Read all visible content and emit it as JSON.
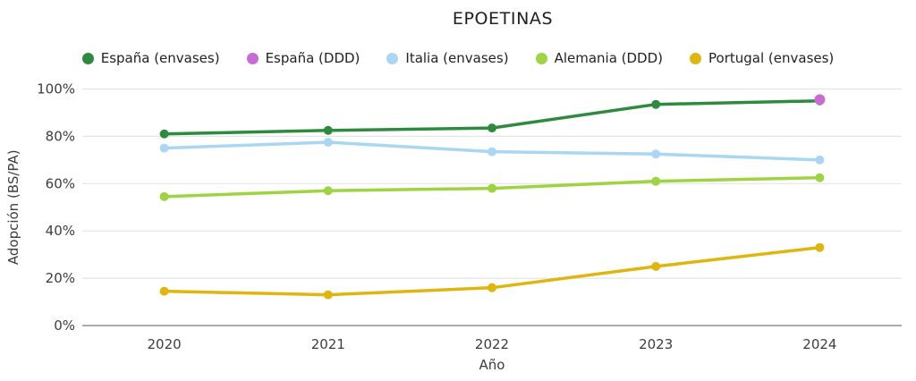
{
  "header": {
    "title": "EPOETINAS"
  },
  "colors": {
    "background": "#ffffff",
    "grid_line": "#e4e4e4",
    "zero_axis_line": "#8f8f8f",
    "tick_text": "#3d3d3d",
    "title_text": "#202020"
  },
  "chart_data": {
    "type": "line",
    "title": "EPOETINAS",
    "xlabel": "Año",
    "ylabel": "Adopción (BS/PA)",
    "categories": [
      "2020",
      "2021",
      "2022",
      "2023",
      "2024"
    ],
    "ylim": [
      0,
      100
    ],
    "yticks": [
      0,
      20,
      40,
      60,
      80,
      100
    ],
    "ytick_suffix": "%",
    "grid": true,
    "legend_position": "top",
    "series": [
      {
        "name": "España (envases)",
        "color": "#2e8b3e",
        "marker_radius": 5,
        "values": [
          81,
          82.5,
          83.5,
          93.5,
          95
        ]
      },
      {
        "name": "España (DDD)",
        "color": "#c96bd4",
        "marker_radius": 6,
        "values": [
          null,
          null,
          null,
          null,
          95.5
        ]
      },
      {
        "name": "Italia (envases)",
        "color": "#a9d6f2",
        "marker_radius": 5,
        "values": [
          75,
          77.5,
          73.5,
          72.5,
          70
        ]
      },
      {
        "name": "Alemania (DDD)",
        "color": "#9ed441",
        "marker_radius": 5,
        "values": [
          54.5,
          57,
          58,
          61,
          62.5
        ]
      },
      {
        "name": "Portugal (envases)",
        "color": "#dfb50f",
        "marker_radius": 5,
        "values": [
          14.5,
          13,
          16,
          25,
          33
        ]
      }
    ]
  }
}
